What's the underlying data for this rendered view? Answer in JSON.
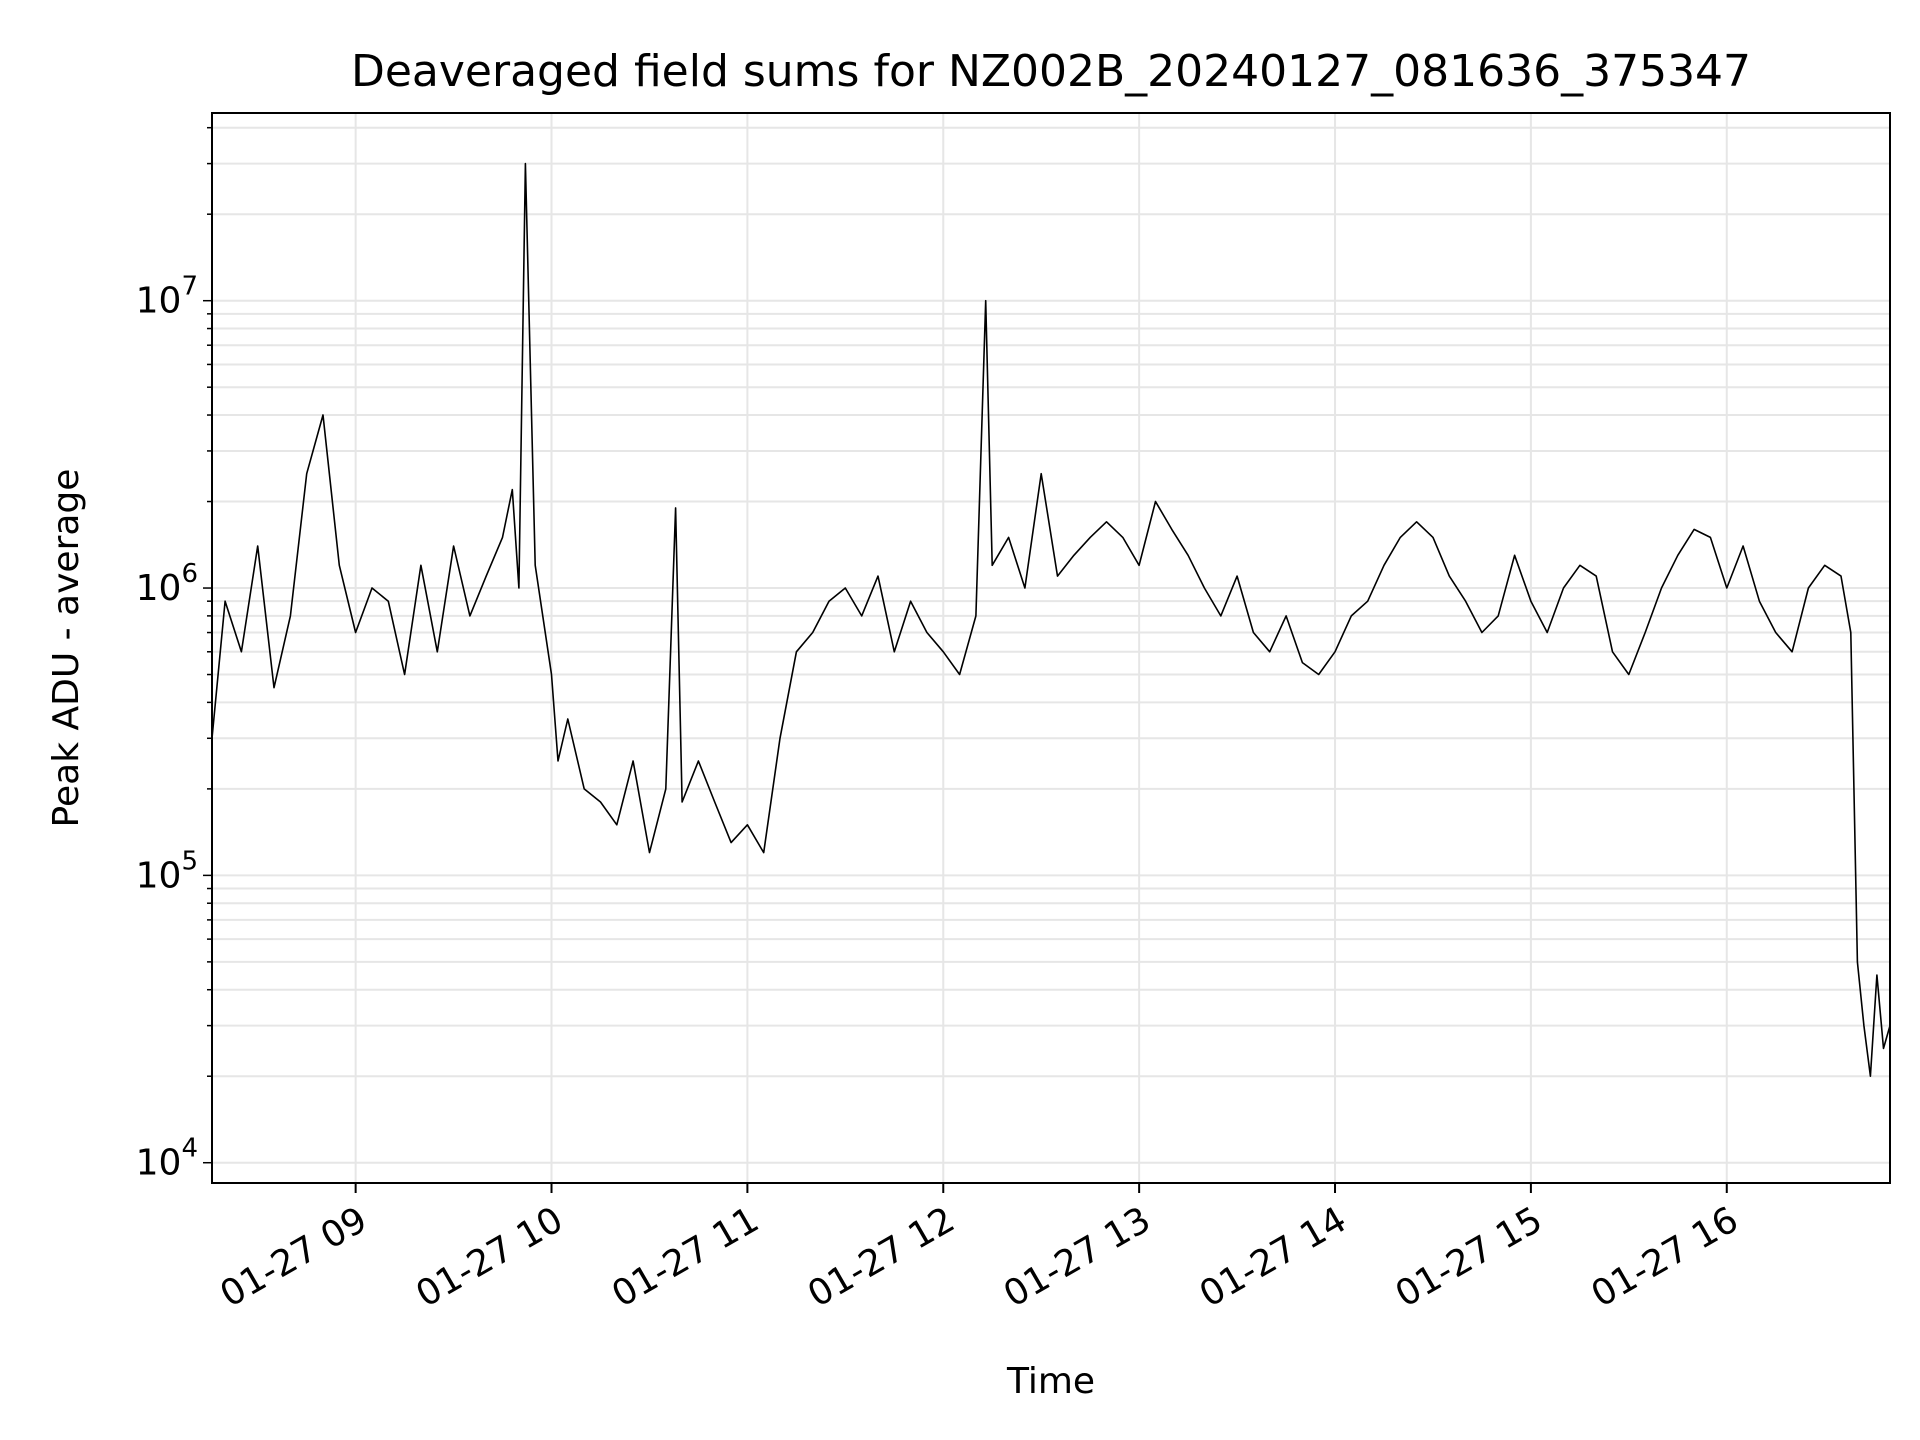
{
  "chart_data": {
    "type": "line",
    "title": "Deaveraged field sums for NZ002B_20240127_081636_375347",
    "xlabel": "Time",
    "ylabel": "Peak ADU - average",
    "yscale": "log",
    "grid": true,
    "line_color": "#000000",
    "grid_color": "#e6e6e6",
    "xlim": [
      "2024-01-27 08:16",
      "2024-01-27 16:50"
    ],
    "ylim": [
      8500,
      45000000
    ],
    "x_ticks": [
      {
        "t": "2024-01-27 09:00",
        "label": "01-27 09"
      },
      {
        "t": "2024-01-27 10:00",
        "label": "01-27 10"
      },
      {
        "t": "2024-01-27 11:00",
        "label": "01-27 11"
      },
      {
        "t": "2024-01-27 12:00",
        "label": "01-27 12"
      },
      {
        "t": "2024-01-27 13:00",
        "label": "01-27 13"
      },
      {
        "t": "2024-01-27 14:00",
        "label": "01-27 14"
      },
      {
        "t": "2024-01-27 15:00",
        "label": "01-27 15"
      },
      {
        "t": "2024-01-27 16:00",
        "label": "01-27 16"
      }
    ],
    "y_ticks": [
      {
        "value": 10000,
        "base": "10",
        "exp": "4"
      },
      {
        "value": 100000,
        "base": "10",
        "exp": "5"
      },
      {
        "value": 1000000,
        "base": "10",
        "exp": "6"
      },
      {
        "value": 10000000,
        "base": "10",
        "exp": "7"
      }
    ],
    "series": [
      {
        "x": [
          "2024-01-27 08:16",
          "2024-01-27 08:20",
          "2024-01-27 08:25",
          "2024-01-27 08:30",
          "2024-01-27 08:35",
          "2024-01-27 08:40",
          "2024-01-27 08:45",
          "2024-01-27 08:50",
          "2024-01-27 08:55",
          "2024-01-27 09:00",
          "2024-01-27 09:05",
          "2024-01-27 09:10",
          "2024-01-27 09:15",
          "2024-01-27 09:20",
          "2024-01-27 09:25",
          "2024-01-27 09:30",
          "2024-01-27 09:35",
          "2024-01-27 09:40",
          "2024-01-27 09:45",
          "2024-01-27 09:48",
          "2024-01-27 09:50",
          "2024-01-27 09:52",
          "2024-01-27 09:55",
          "2024-01-27 10:00",
          "2024-01-27 10:02",
          "2024-01-27 10:05",
          "2024-01-27 10:10",
          "2024-01-27 10:15",
          "2024-01-27 10:20",
          "2024-01-27 10:25",
          "2024-01-27 10:30",
          "2024-01-27 10:35",
          "2024-01-27 10:38",
          "2024-01-27 10:40",
          "2024-01-27 10:45",
          "2024-01-27 10:50",
          "2024-01-27 10:55",
          "2024-01-27 11:00",
          "2024-01-27 11:05",
          "2024-01-27 11:10",
          "2024-01-27 11:15",
          "2024-01-27 11:20",
          "2024-01-27 11:25",
          "2024-01-27 11:30",
          "2024-01-27 11:35",
          "2024-01-27 11:40",
          "2024-01-27 11:45",
          "2024-01-27 11:50",
          "2024-01-27 11:55",
          "2024-01-27 12:00",
          "2024-01-27 12:05",
          "2024-01-27 12:10",
          "2024-01-27 12:13",
          "2024-01-27 12:15",
          "2024-01-27 12:20",
          "2024-01-27 12:25",
          "2024-01-27 12:30",
          "2024-01-27 12:35",
          "2024-01-27 12:40",
          "2024-01-27 12:45",
          "2024-01-27 12:50",
          "2024-01-27 12:55",
          "2024-01-27 13:00",
          "2024-01-27 13:05",
          "2024-01-27 13:10",
          "2024-01-27 13:15",
          "2024-01-27 13:20",
          "2024-01-27 13:25",
          "2024-01-27 13:30",
          "2024-01-27 13:35",
          "2024-01-27 13:40",
          "2024-01-27 13:45",
          "2024-01-27 13:50",
          "2024-01-27 13:55",
          "2024-01-27 14:00",
          "2024-01-27 14:05",
          "2024-01-27 14:10",
          "2024-01-27 14:15",
          "2024-01-27 14:20",
          "2024-01-27 14:25",
          "2024-01-27 14:30",
          "2024-01-27 14:35",
          "2024-01-27 14:40",
          "2024-01-27 14:45",
          "2024-01-27 14:50",
          "2024-01-27 14:55",
          "2024-01-27 15:00",
          "2024-01-27 15:05",
          "2024-01-27 15:10",
          "2024-01-27 15:15",
          "2024-01-27 15:20",
          "2024-01-27 15:25",
          "2024-01-27 15:30",
          "2024-01-27 15:35",
          "2024-01-27 15:40",
          "2024-01-27 15:45",
          "2024-01-27 15:50",
          "2024-01-27 15:55",
          "2024-01-27 16:00",
          "2024-01-27 16:05",
          "2024-01-27 16:10",
          "2024-01-27 16:15",
          "2024-01-27 16:20",
          "2024-01-27 16:25",
          "2024-01-27 16:30",
          "2024-01-27 16:35",
          "2024-01-27 16:38",
          "2024-01-27 16:40",
          "2024-01-27 16:42",
          "2024-01-27 16:44",
          "2024-01-27 16:46",
          "2024-01-27 16:48",
          "2024-01-27 16:50"
        ],
        "y": [
          300000,
          900000,
          600000,
          1400000,
          450000,
          800000,
          2500000,
          4000000,
          1200000,
          700000,
          1000000,
          900000,
          500000,
          1200000,
          600000,
          1400000,
          800000,
          1100000,
          1500000,
          2200000,
          1000000,
          30000000,
          1200000,
          500000,
          250000,
          350000,
          200000,
          180000,
          150000,
          250000,
          120000,
          200000,
          1900000,
          180000,
          250000,
          180000,
          130000,
          150000,
          120000,
          300000,
          600000,
          700000,
          900000,
          1000000,
          800000,
          1100000,
          600000,
          900000,
          700000,
          600000,
          500000,
          800000,
          10000000,
          1200000,
          1500000,
          1000000,
          2500000,
          1100000,
          1300000,
          1500000,
          1700000,
          1500000,
          1200000,
          2000000,
          1600000,
          1300000,
          1000000,
          800000,
          1100000,
          700000,
          600000,
          800000,
          550000,
          500000,
          600000,
          800000,
          900000,
          1200000,
          1500000,
          1700000,
          1500000,
          1100000,
          900000,
          700000,
          800000,
          1300000,
          900000,
          700000,
          1000000,
          1200000,
          1100000,
          600000,
          500000,
          700000,
          1000000,
          1300000,
          1600000,
          1500000,
          1000000,
          1400000,
          900000,
          700000,
          600000,
          1000000,
          1200000,
          1100000,
          700000,
          50000,
          30000,
          20000,
          45000,
          25000,
          30000
        ]
      }
    ]
  }
}
